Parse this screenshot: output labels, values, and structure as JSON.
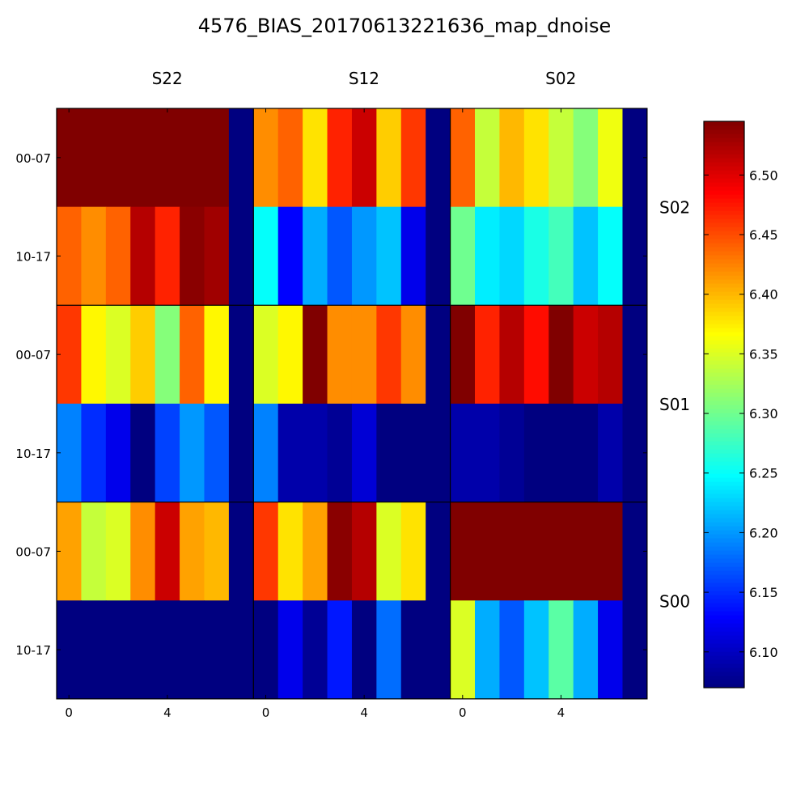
{
  "chart_data": {
    "type": "heatmap",
    "title": "4576_BIAS_20170613221636_map_dnoise",
    "column_labels": [
      "S22",
      "S12",
      "S02"
    ],
    "row_labels": [
      "S02",
      "S01",
      "S00"
    ],
    "y_tick_labels": [
      "00-07",
      "10-17"
    ],
    "x_tick_labels": [
      "0",
      "4"
    ],
    "colormap": "jet",
    "colorbar": {
      "vmin": 6.07,
      "vmax": 6.545,
      "ticks": [
        6.1,
        6.15,
        6.2,
        6.25,
        6.3,
        6.35,
        6.4,
        6.45,
        6.5
      ],
      "tick_labels": [
        "6.10",
        "6.15",
        "6.20",
        "6.25",
        "6.30",
        "6.35",
        "6.40",
        "6.45",
        "6.50"
      ]
    },
    "x_range": [
      -0.5,
      7.5
    ],
    "grid": false,
    "cells_note_values_by_row": true,
    "rows": [
      {
        "row": "S02",
        "cols": [
          {
            "col": "S22",
            "top": [
              6.56,
              6.56,
              6.56,
              6.56,
              6.56,
              6.56,
              6.56,
              6.06
            ],
            "bottom": [
              6.44,
              6.42,
              6.44,
              6.52,
              6.47,
              6.54,
              6.53,
              6.06
            ]
          },
          {
            "col": "S12",
            "top": [
              6.42,
              6.44,
              6.38,
              6.47,
              6.51,
              6.39,
              6.46,
              6.06
            ],
            "bottom": [
              6.25,
              6.13,
              6.21,
              6.17,
              6.2,
              6.22,
              6.12,
              6.06
            ]
          },
          {
            "col": "S02",
            "top": [
              6.44,
              6.34,
              6.4,
              6.38,
              6.34,
              6.31,
              6.36,
              6.06
            ],
            "bottom": [
              6.3,
              6.24,
              6.23,
              6.26,
              6.28,
              6.22,
              6.25,
              6.06
            ]
          }
        ]
      },
      {
        "row": "S01",
        "cols": [
          {
            "col": "S22",
            "top": [
              6.46,
              6.37,
              6.35,
              6.39,
              6.31,
              6.44,
              6.37,
              6.06
            ],
            "bottom": [
              6.19,
              6.15,
              6.12,
              6.07,
              6.16,
              6.2,
              6.17,
              6.06
            ]
          },
          {
            "col": "S12",
            "top": [
              6.35,
              6.37,
              6.55,
              6.42,
              6.42,
              6.46,
              6.42,
              6.06
            ],
            "bottom": [
              6.19,
              6.09,
              6.09,
              6.08,
              6.11,
              6.07,
              6.06,
              6.06
            ]
          },
          {
            "col": "S02",
            "top": [
              6.55,
              6.47,
              6.52,
              6.48,
              6.55,
              6.51,
              6.52,
              6.06
            ],
            "bottom": [
              6.09,
              6.09,
              6.08,
              6.07,
              6.07,
              6.07,
              6.09,
              6.06
            ]
          }
        ]
      },
      {
        "row": "S00",
        "cols": [
          {
            "col": "S22",
            "top": [
              6.41,
              6.34,
              6.35,
              6.42,
              6.51,
              6.41,
              6.4,
              6.06
            ],
            "bottom": [
              6.06,
              6.06,
              6.06,
              6.06,
              6.06,
              6.06,
              6.06,
              6.06
            ]
          },
          {
            "col": "S12",
            "top": [
              6.46,
              6.38,
              6.41,
              6.54,
              6.52,
              6.35,
              6.38,
              6.06
            ],
            "bottom": [
              6.07,
              6.12,
              6.08,
              6.14,
              6.07,
              6.18,
              6.06,
              6.06
            ]
          },
          {
            "col": "S02",
            "top": [
              6.56,
              6.56,
              6.56,
              6.56,
              6.56,
              6.56,
              6.56,
              6.06
            ],
            "bottom": [
              6.35,
              6.21,
              6.17,
              6.22,
              6.29,
              6.21,
              6.12,
              6.06
            ]
          }
        ]
      }
    ]
  }
}
